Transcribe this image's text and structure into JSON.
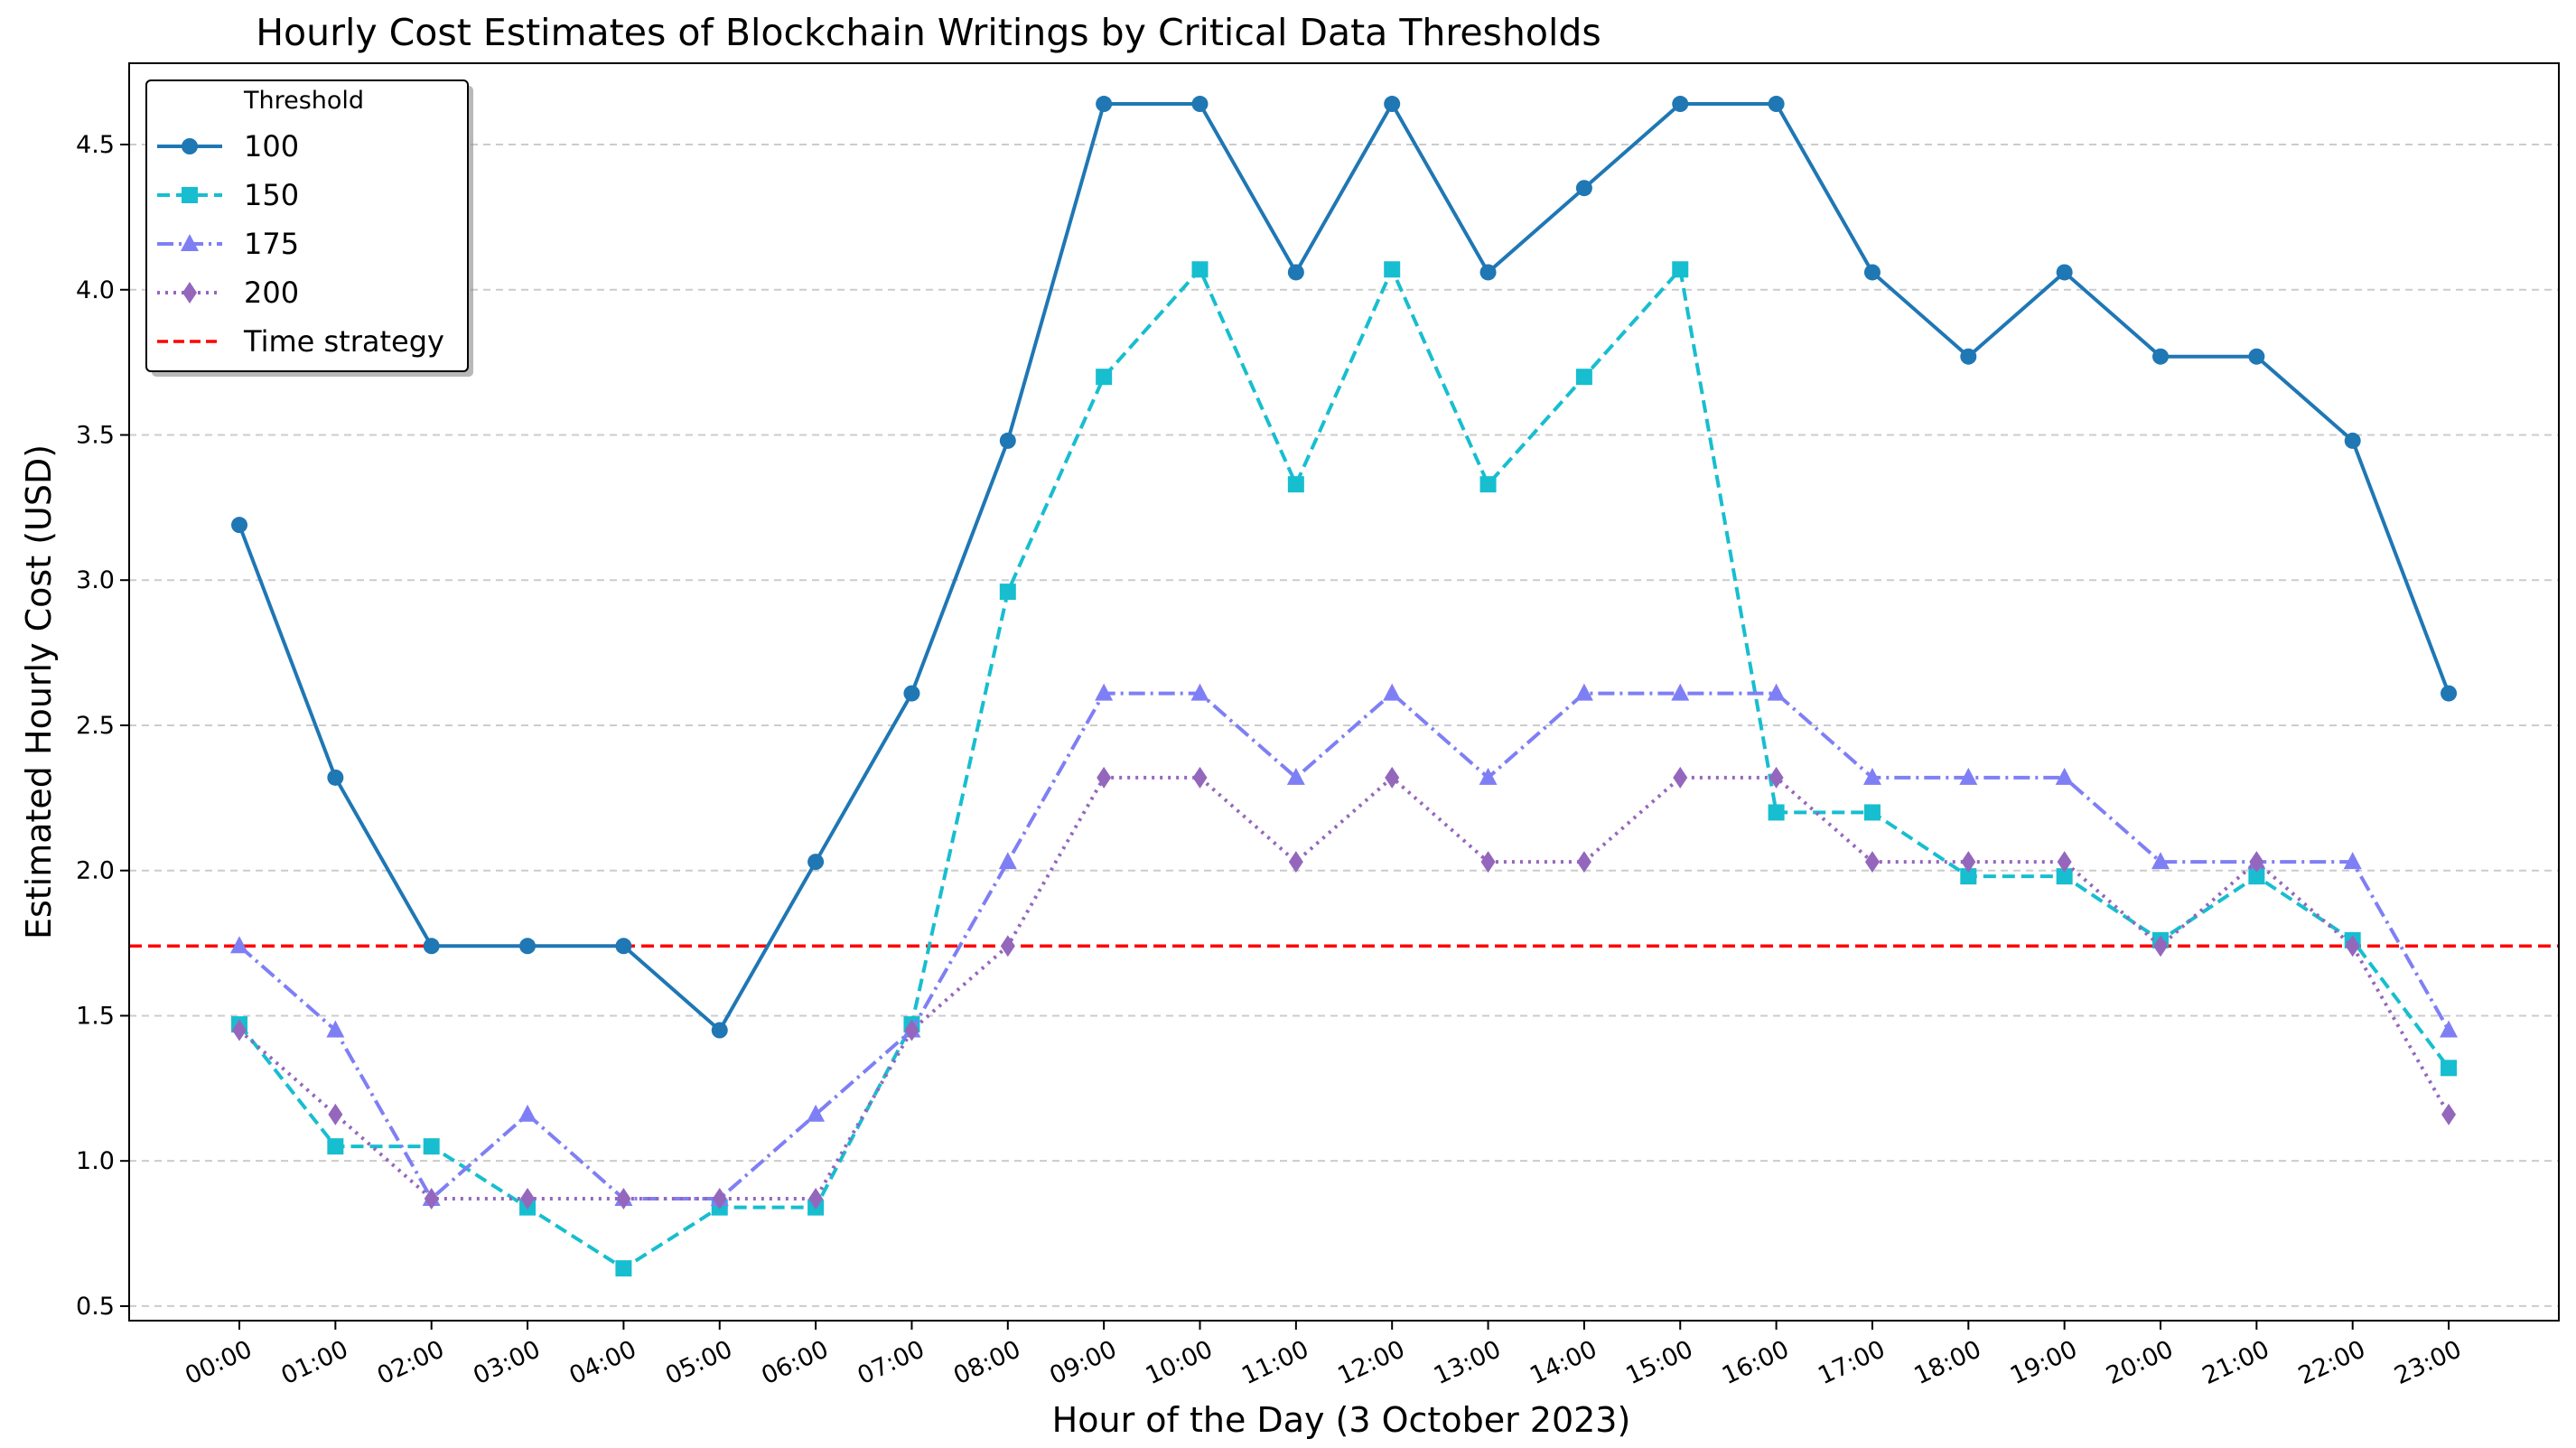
{
  "chart_data": {
    "type": "line",
    "title": "Hourly Cost Estimates of Blockchain Writings by Critical Data Thresholds",
    "xlabel": "Hour of the Day (3 October 2023)",
    "ylabel": "Estimated Hourly Cost (USD)",
    "categories": [
      "00:00",
      "01:00",
      "02:00",
      "03:00",
      "04:00",
      "05:00",
      "06:00",
      "07:00",
      "08:00",
      "09:00",
      "10:00",
      "11:00",
      "12:00",
      "13:00",
      "14:00",
      "15:00",
      "16:00",
      "17:00",
      "18:00",
      "19:00",
      "20:00",
      "21:00",
      "22:00",
      "23:00"
    ],
    "ylim": [
      0.45,
      4.78
    ],
    "yticks": [
      0.5,
      1.0,
      1.5,
      2.0,
      2.5,
      3.0,
      3.5,
      4.0,
      4.5
    ],
    "ytick_labels": [
      "0.5",
      "1.0",
      "1.5",
      "2.0",
      "2.5",
      "3.0",
      "3.5",
      "4.0",
      "4.5"
    ],
    "grid": "y-dashed",
    "legend": {
      "title": "Threshold",
      "placement": "top-left"
    },
    "series": [
      {
        "name": "100",
        "color": "#1f77b4",
        "dash": "solid",
        "marker": "circle",
        "values": [
          3.19,
          2.32,
          1.74,
          1.74,
          1.74,
          1.45,
          2.03,
          2.61,
          3.48,
          4.64,
          4.64,
          4.06,
          4.64,
          4.06,
          4.35,
          4.64,
          4.64,
          4.06,
          3.77,
          4.06,
          3.77,
          3.77,
          3.48,
          2.61
        ]
      },
      {
        "name": "150",
        "color": "#17becf",
        "dash": "dashed",
        "marker": "square",
        "values": [
          1.47,
          1.05,
          1.05,
          0.84,
          0.63,
          0.84,
          0.84,
          1.47,
          2.96,
          3.7,
          4.07,
          3.33,
          4.07,
          3.33,
          3.7,
          4.07,
          2.2,
          2.2,
          1.98,
          1.98,
          1.76,
          1.98,
          1.76,
          1.32
        ]
      },
      {
        "name": "175",
        "color": "#7f7ff5",
        "dash": "dashdot",
        "marker": "triangle",
        "values": [
          1.74,
          1.45,
          0.87,
          1.16,
          0.87,
          0.87,
          1.16,
          1.45,
          2.03,
          2.61,
          2.61,
          2.32,
          2.61,
          2.32,
          2.61,
          2.61,
          2.61,
          2.32,
          2.32,
          2.32,
          2.03,
          2.03,
          2.03,
          1.45
        ]
      },
      {
        "name": "200",
        "color": "#9467bd",
        "dash": "dotted",
        "marker": "diamond",
        "values": [
          1.45,
          1.16,
          0.87,
          0.87,
          0.87,
          0.87,
          0.87,
          1.45,
          1.74,
          2.32,
          2.32,
          2.03,
          2.32,
          2.03,
          2.03,
          2.32,
          2.32,
          2.03,
          2.03,
          2.03,
          1.74,
          2.03,
          1.74,
          1.16
        ]
      }
    ],
    "reference_line": {
      "name": "Time strategy",
      "value": 1.74,
      "color": "#ff0000",
      "dash": "dashed"
    }
  }
}
